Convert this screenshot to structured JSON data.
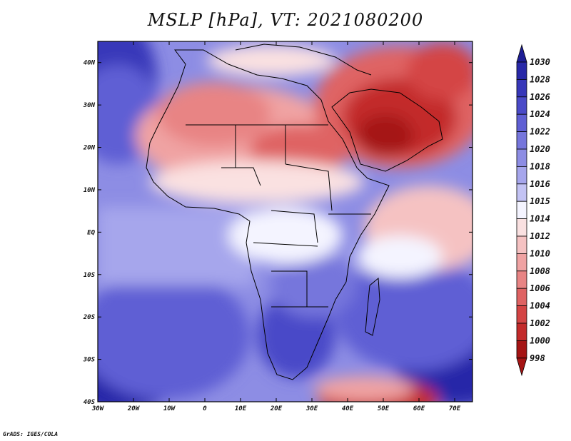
{
  "title": "MSLP [hPa], VT: 2021080200",
  "credit": "GrADS: IGES/COLA",
  "axes": {
    "x_labels": [
      "30W",
      "20W",
      "10W",
      "0",
      "10E",
      "20E",
      "30E",
      "40E",
      "50E",
      "60E",
      "70E"
    ],
    "y_labels": [
      "40N",
      "30N",
      "20N",
      "10N",
      "EQ",
      "10S",
      "20S",
      "30S",
      "40S"
    ]
  },
  "colorbar": {
    "levels": [
      "1030",
      "1028",
      "1026",
      "1024",
      "1022",
      "1020",
      "1018",
      "1016",
      "1015",
      "1014",
      "1012",
      "1010",
      "1008",
      "1006",
      "1004",
      "1002",
      "1000",
      "998"
    ],
    "colors": [
      "#1e1e96",
      "#2828a8",
      "#3737b9",
      "#4a4ac8",
      "#5f5fd4",
      "#7676dc",
      "#8d8de4",
      "#a6a6ec",
      "#c3c3f4",
      "#f4f4ff",
      "#fae1e1",
      "#f5c2c2",
      "#f0a3a3",
      "#e88484",
      "#df6363",
      "#d44444",
      "#c32a2a",
      "#a51414"
    ]
  },
  "map": {
    "lon_range": [
      -30,
      75
    ],
    "lat_range": [
      -40,
      45
    ],
    "contour_units": "hPa"
  }
}
